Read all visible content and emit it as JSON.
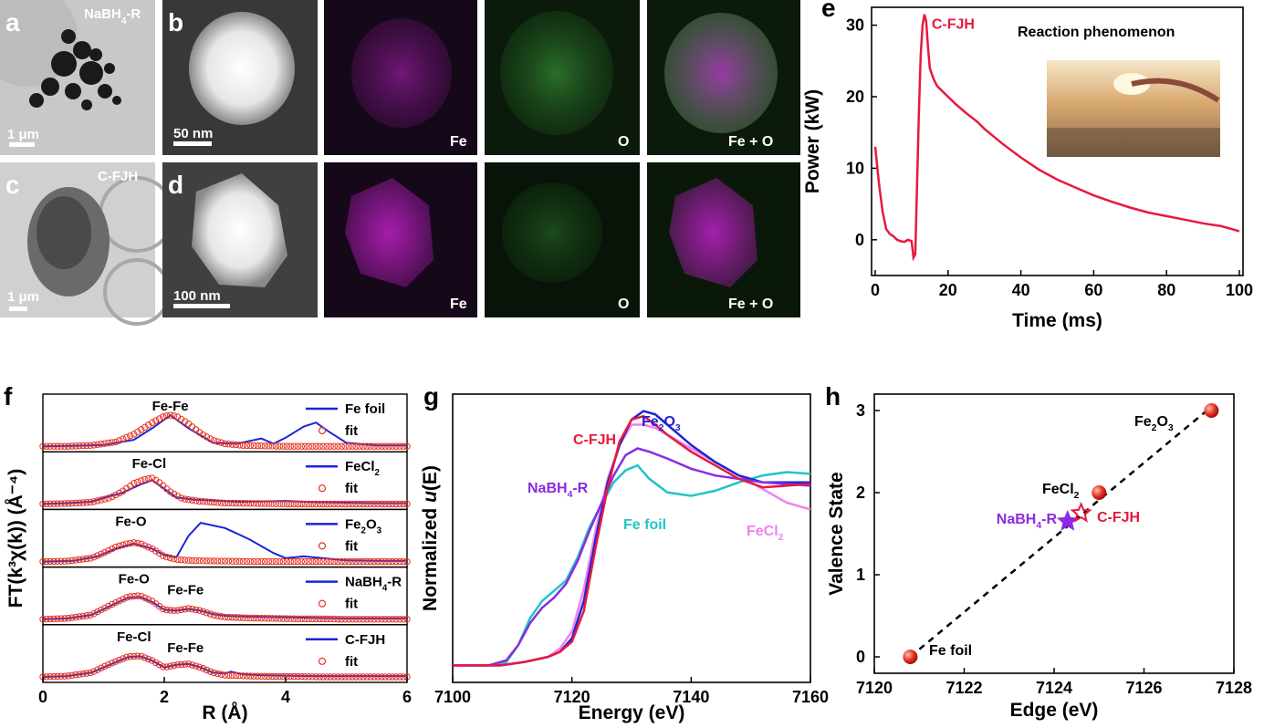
{
  "panel_labels": {
    "a": "a",
    "b": "b",
    "c": "c",
    "d": "d",
    "e": "e",
    "f": "f",
    "g": "g",
    "h": "h"
  },
  "micrographs": {
    "row1_sample": "NaBH",
    "row1_sub": "4",
    "row1_suffix": "-R",
    "row2_sample": "C-FJH",
    "scale_a": "1 μm",
    "scale_b": "50 nm",
    "scale_c": "1 μm",
    "scale_d": "100 nm",
    "map_fe": "Fe",
    "map_o": "O",
    "map_feo": "Fe + O"
  },
  "colors": {
    "red": "#e8193c",
    "blue": "#1b25d6",
    "purple": "#8a2be2",
    "cyan": "#22c4c4",
    "pink": "#ee82ee",
    "fit_red": "#e8331f",
    "magenta": "#c020c8",
    "green": "#30a030"
  },
  "chart_data": [
    {
      "id": "e",
      "type": "line",
      "xlabel": "Time (ms)",
      "ylabel": "Power (kW)",
      "xlim": [
        -1,
        101
      ],
      "ylim": [
        -5,
        32.5
      ],
      "xticks": [
        0,
        20,
        40,
        60,
        80,
        100
      ],
      "yticks": [
        0,
        10,
        20,
        30
      ],
      "series_label": "C-FJH",
      "inset_title": "Reaction phenomenon",
      "x": [
        0,
        1,
        2,
        3,
        4,
        5,
        6,
        7,
        8,
        9,
        10,
        10.5,
        11,
        11.5,
        12,
        12.5,
        13,
        13.5,
        14,
        14.5,
        15,
        16,
        17,
        18,
        20,
        22,
        25,
        28,
        30,
        35,
        40,
        45,
        50,
        55,
        60,
        65,
        70,
        75,
        80,
        85,
        90,
        95,
        100
      ],
      "y": [
        13,
        8,
        4,
        1.5,
        0.8,
        0.5,
        0,
        -0.2,
        -0.3,
        0,
        -0.2,
        -2.5,
        -2,
        8,
        18,
        26,
        30,
        31.5,
        30.5,
        27,
        24,
        22.5,
        21.5,
        21,
        20,
        19,
        17.7,
        16.5,
        15.5,
        13.4,
        11.5,
        9.8,
        8.4,
        7.3,
        6.2,
        5.3,
        4.5,
        3.8,
        3.3,
        2.8,
        2.3,
        1.9,
        1.2
      ]
    },
    {
      "id": "f",
      "type": "line",
      "xlabel": "R (Å)",
      "ylabel": "FT(k³χ(k)) (Å⁻⁴)",
      "xlim": [
        0,
        6
      ],
      "xticks": [
        0,
        2,
        4,
        6
      ],
      "fit_label": "fit",
      "series": [
        {
          "name": "Fe foil",
          "peak_labels": [
            "Fe-Fe"
          ],
          "data_x": [
            0,
            0.5,
            1,
            1.5,
            1.8,
            2.1,
            2.4,
            2.8,
            3.2,
            3.6,
            3.8,
            4,
            4.3,
            4.5,
            4.7,
            5,
            5.5,
            6
          ],
          "data_y": [
            0,
            0.01,
            0.03,
            0.15,
            0.42,
            0.72,
            0.42,
            0.08,
            0.06,
            0.18,
            0.06,
            0.2,
            0.46,
            0.55,
            0.35,
            0.08,
            0.02,
            0.02
          ],
          "fit_x": [
            0,
            0.4,
            0.8,
            1.2,
            1.5,
            1.8,
            2.0,
            2.1,
            2.2,
            2.4,
            2.6,
            2.8,
            3.0,
            3.3,
            3.6,
            4,
            4.5,
            5,
            5.5,
            6
          ],
          "fit_y": [
            0,
            0,
            0.02,
            0.1,
            0.28,
            0.55,
            0.7,
            0.72,
            0.7,
            0.52,
            0.3,
            0.14,
            0.06,
            0.02,
            0.01,
            0,
            0,
            0,
            0,
            0
          ]
        },
        {
          "name": "FeCl",
          "name_sub": "2",
          "peak_labels": [
            "Fe-Cl"
          ],
          "data_x": [
            0,
            0.4,
            0.8,
            1.1,
            1.3,
            1.6,
            1.8,
            2.0,
            2.2,
            2.5,
            2.8,
            3.2,
            3.6,
            4,
            4.5,
            5,
            5.5,
            6
          ],
          "data_y": [
            0,
            0.02,
            0.05,
            0.18,
            0.25,
            0.45,
            0.55,
            0.35,
            0.15,
            0.1,
            0.08,
            0.05,
            0.06,
            0.07,
            0.04,
            0.03,
            0.02,
            0.02
          ],
          "fit_x": [
            0,
            0.4,
            0.8,
            1.1,
            1.3,
            1.5,
            1.7,
            1.8,
            1.9,
            2.1,
            2.3,
            2.6,
            3.0,
            3.5,
            4,
            4.5,
            5,
            5.5,
            6
          ],
          "fit_y": [
            0,
            0.01,
            0.04,
            0.14,
            0.28,
            0.48,
            0.58,
            0.6,
            0.52,
            0.28,
            0.12,
            0.06,
            0.02,
            0.01,
            0,
            0,
            0,
            0,
            0
          ]
        },
        {
          "name": "Fe",
          "name_sub": "2",
          "name_mid": "O",
          "name_sub2": "3",
          "peak_labels": [
            "Fe-O"
          ],
          "data_x": [
            0,
            0.5,
            0.9,
            1.2,
            1.5,
            1.8,
            2.0,
            2.2,
            2.4,
            2.6,
            3.0,
            3.4,
            3.8,
            4.0,
            4.3,
            4.6,
            5,
            5.5,
            6
          ],
          "data_y": [
            0,
            0.02,
            0.12,
            0.3,
            0.42,
            0.3,
            0.15,
            0.1,
            0.6,
            0.9,
            0.78,
            0.52,
            0.2,
            0.08,
            0.12,
            0.08,
            0.03,
            0.02,
            0.02
          ],
          "fit_x": [
            0,
            0.4,
            0.8,
            1.0,
            1.2,
            1.4,
            1.5,
            1.6,
            1.8,
            2.0,
            2.2,
            2.5,
            3.0,
            3.5,
            4,
            4.5,
            5,
            5.5,
            6
          ],
          "fit_y": [
            0,
            0.01,
            0.08,
            0.2,
            0.34,
            0.42,
            0.44,
            0.42,
            0.3,
            0.12,
            0.05,
            0.02,
            0.01,
            0,
            0,
            0,
            0,
            0,
            0
          ]
        },
        {
          "name": "NaBH",
          "name_sub": "4",
          "name_mid": "-R",
          "peak_labels": [
            "Fe-O",
            "Fe-Fe"
          ],
          "data_x": [
            0,
            0.4,
            0.8,
            1.1,
            1.4,
            1.6,
            1.8,
            2.0,
            2.2,
            2.4,
            2.6,
            2.8,
            3.0,
            3.4,
            3.8,
            4.2,
            4.6,
            5,
            5.5,
            6
          ],
          "data_y": [
            0,
            0.02,
            0.1,
            0.3,
            0.5,
            0.52,
            0.4,
            0.22,
            0.2,
            0.24,
            0.2,
            0.12,
            0.08,
            0.06,
            0.05,
            0.04,
            0.03,
            0.02,
            0.02,
            0.02
          ],
          "fit_x": [
            0,
            0.4,
            0.8,
            1.1,
            1.4,
            1.6,
            1.8,
            2.0,
            2.2,
            2.4,
            2.6,
            2.8,
            3.0,
            3.4,
            3.8,
            4.2,
            4.6,
            5,
            5.5,
            6
          ],
          "fit_y": [
            0,
            0.02,
            0.1,
            0.32,
            0.52,
            0.55,
            0.42,
            0.22,
            0.2,
            0.25,
            0.2,
            0.1,
            0.05,
            0.03,
            0.02,
            0.01,
            0.01,
            0,
            0,
            0
          ]
        },
        {
          "name": "C-FJH",
          "peak_labels": [
            "Fe-Cl",
            "Fe-Fe"
          ],
          "data_x": [
            0,
            0.4,
            0.8,
            1.1,
            1.4,
            1.6,
            1.8,
            2.0,
            2.2,
            2.4,
            2.6,
            2.8,
            3.0,
            3.1,
            3.3,
            3.6,
            4,
            4.5,
            5,
            5.5,
            6
          ],
          "data_y": [
            0,
            0.02,
            0.1,
            0.28,
            0.46,
            0.48,
            0.38,
            0.22,
            0.28,
            0.3,
            0.22,
            0.1,
            0.08,
            0.12,
            0.06,
            0.04,
            0.03,
            0.02,
            0.02,
            0.02,
            0.02
          ],
          "fit_x": [
            0,
            0.4,
            0.8,
            1.1,
            1.4,
            1.6,
            1.8,
            2.0,
            2.2,
            2.4,
            2.6,
            2.8,
            3.0,
            3.4,
            3.8,
            4.2,
            4.6,
            5,
            5.5,
            6
          ],
          "fit_y": [
            0,
            0.02,
            0.1,
            0.3,
            0.47,
            0.49,
            0.38,
            0.22,
            0.28,
            0.3,
            0.22,
            0.1,
            0.04,
            0.02,
            0.01,
            0.01,
            0,
            0,
            0,
            0
          ]
        }
      ]
    },
    {
      "id": "g",
      "type": "line",
      "xlabel": "Energy (eV)",
      "ylabel_pre": "Normalized ",
      "ylabel_var": "u",
      "ylabel_post": "(E)",
      "xlim": [
        7100,
        7160
      ],
      "ylim": [
        -0.1,
        1.6
      ],
      "xticks": [
        7100,
        7120,
        7140,
        7160
      ],
      "series": [
        {
          "name": "Fe foil",
          "color": "cyan",
          "x": [
            7100,
            7106,
            7109,
            7111,
            7113,
            7115,
            7117,
            7119,
            7121,
            7123,
            7125,
            7127,
            7129,
            7131,
            7133,
            7136,
            7140,
            7144,
            7148,
            7152,
            7156,
            7160
          ],
          "y": [
            0,
            0,
            0.02,
            0.12,
            0.28,
            0.38,
            0.44,
            0.5,
            0.64,
            0.82,
            0.95,
            1.08,
            1.15,
            1.18,
            1.1,
            1.02,
            1.0,
            1.03,
            1.08,
            1.12,
            1.14,
            1.13
          ]
        },
        {
          "name": "FeCl",
          "name_sub": "2",
          "color": "pink",
          "x": [
            7100,
            7108,
            7112,
            7116,
            7118,
            7120,
            7122,
            7124,
            7126,
            7128,
            7130,
            7132,
            7134,
            7136,
            7140,
            7144,
            7148,
            7152,
            7156,
            7160
          ],
          "y": [
            0,
            0,
            0.02,
            0.05,
            0.1,
            0.2,
            0.45,
            0.8,
            1.1,
            1.3,
            1.42,
            1.42,
            1.4,
            1.36,
            1.28,
            1.2,
            1.12,
            1.04,
            0.96,
            0.92
          ]
        },
        {
          "name": "Fe",
          "name_sub": "2",
          "name_mid": "O",
          "name_sub2": "3",
          "color": "blue",
          "x": [
            7100,
            7108,
            7112,
            7116,
            7118,
            7120,
            7122,
            7124,
            7126,
            7128,
            7130,
            7132,
            7134,
            7136,
            7140,
            7144,
            7148,
            7152,
            7156,
            7160
          ],
          "y": [
            0,
            0,
            0.02,
            0.05,
            0.08,
            0.16,
            0.38,
            0.75,
            1.08,
            1.3,
            1.45,
            1.5,
            1.48,
            1.42,
            1.3,
            1.2,
            1.12,
            1.08,
            1.08,
            1.08
          ]
        },
        {
          "name": "NaBH",
          "name_sub": "4",
          "name_mid": "-R",
          "color": "purple",
          "x": [
            7100,
            7106,
            7109,
            7111,
            7113,
            7115,
            7117,
            7119,
            7121,
            7123,
            7125,
            7127,
            7129,
            7131,
            7133,
            7136,
            7140,
            7144,
            7148,
            7152,
            7156,
            7160
          ],
          "y": [
            0,
            0,
            0.03,
            0.12,
            0.25,
            0.34,
            0.4,
            0.48,
            0.62,
            0.8,
            0.96,
            1.12,
            1.24,
            1.28,
            1.26,
            1.22,
            1.16,
            1.12,
            1.1,
            1.08,
            1.07,
            1.06
          ]
        },
        {
          "name": "C-FJH",
          "color": "red",
          "x": [
            7100,
            7108,
            7112,
            7116,
            7118,
            7120,
            7122,
            7124,
            7126,
            7128,
            7130,
            7132,
            7134,
            7136,
            7140,
            7144,
            7148,
            7152,
            7156,
            7160
          ],
          "y": [
            0,
            0,
            0.02,
            0.05,
            0.08,
            0.14,
            0.32,
            0.7,
            1.05,
            1.32,
            1.45,
            1.47,
            1.42,
            1.36,
            1.26,
            1.18,
            1.1,
            1.05,
            1.06,
            1.07
          ]
        }
      ]
    },
    {
      "id": "h",
      "type": "scatter",
      "xlabel": "Edge (eV)",
      "ylabel": "Valence State",
      "xlim": [
        7120,
        7128
      ],
      "ylim": [
        -0.2,
        3.2
      ],
      "xticks": [
        7120,
        7122,
        7124,
        7126,
        7128
      ],
      "yticks": [
        0,
        1,
        2,
        3
      ],
      "fit_line": {
        "x": [
          7120.8,
          7127.4
        ],
        "y": [
          0,
          3
        ]
      },
      "references": [
        {
          "name": "Fe foil",
          "x": 7120.8,
          "y": 0
        },
        {
          "name": "FeCl",
          "name_sub": "2",
          "x": 7125.0,
          "y": 2
        },
        {
          "name": "Fe",
          "name_sub": "2",
          "name_mid": "O",
          "name_sub2": "3",
          "x": 7127.5,
          "y": 3
        }
      ],
      "samples": [
        {
          "name": "NaBH",
          "name_sub": "4",
          "name_mid": "-R",
          "x": 7124.3,
          "y": 1.65,
          "color": "purple"
        },
        {
          "name": "C-FJH",
          "x": 7124.6,
          "y": 1.75,
          "color": "red"
        }
      ]
    }
  ]
}
